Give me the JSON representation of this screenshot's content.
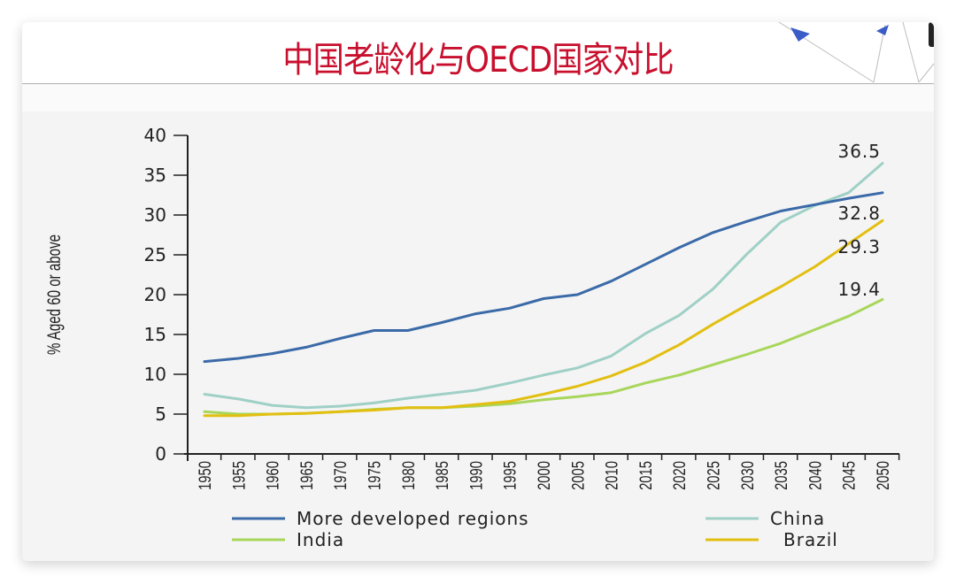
{
  "slide": {
    "title": "中国老龄化与OECD国家对比"
  },
  "colors": {
    "title": "#c8102e",
    "more_developed": "#3b6aa8",
    "china": "#9fd0c6",
    "india": "#a8d65a",
    "brazil": "#e2bf10",
    "decor_arrow": "#3a5cc7"
  },
  "chart_data": {
    "type": "line",
    "title": "",
    "xlabel": "",
    "ylabel": "% Aged 60 or above",
    "ylim": [
      0,
      40
    ],
    "yticks": [
      0,
      5,
      10,
      15,
      20,
      25,
      30,
      35,
      40
    ],
    "x": [
      "1950",
      "1955",
      "1960",
      "1965",
      "1970",
      "1975",
      "1980",
      "1985",
      "1990",
      "1995",
      "2000",
      "2005",
      "2010",
      "2015",
      "2020",
      "2025",
      "2030",
      "2035",
      "2040",
      "2045",
      "2050"
    ],
    "series": [
      {
        "name": "More developed regions",
        "values": [
          11.6,
          12.0,
          12.6,
          13.4,
          14.5,
          15.5,
          15.5,
          16.5,
          17.6,
          18.3,
          19.5,
          20.0,
          21.7,
          23.8,
          25.9,
          27.8,
          29.2,
          30.5,
          31.3,
          32.1,
          32.8
        ]
      },
      {
        "name": "China",
        "values": [
          7.5,
          6.9,
          6.1,
          5.8,
          6.0,
          6.4,
          7.0,
          7.5,
          8.0,
          8.9,
          9.9,
          10.8,
          12.3,
          15.1,
          17.4,
          20.7,
          25.1,
          29.1,
          31.2,
          32.8,
          36.5
        ]
      },
      {
        "name": "India",
        "values": [
          5.3,
          5.0,
          5.0,
          5.1,
          5.3,
          5.6,
          5.8,
          5.8,
          6.0,
          6.3,
          6.8,
          7.2,
          7.7,
          8.9,
          9.9,
          11.2,
          12.5,
          13.9,
          15.6,
          17.3,
          19.4
        ]
      },
      {
        "name": "Brazil",
        "values": [
          4.8,
          4.8,
          5.0,
          5.1,
          5.3,
          5.5,
          5.8,
          5.8,
          6.2,
          6.6,
          7.5,
          8.5,
          9.8,
          11.5,
          13.7,
          16.3,
          18.7,
          21.0,
          23.5,
          26.4,
          29.3
        ]
      }
    ],
    "annotations": [
      {
        "text": "36.5",
        "series": "China"
      },
      {
        "text": "32.8",
        "series": "More developed regions"
      },
      {
        "text": "29.3",
        "series": "Brazil"
      },
      {
        "text": "19.4",
        "series": "India"
      }
    ],
    "legend": {
      "position": "bottom",
      "entries": [
        "More developed regions",
        "China",
        "India",
        "Brazil"
      ]
    },
    "grid": false
  }
}
